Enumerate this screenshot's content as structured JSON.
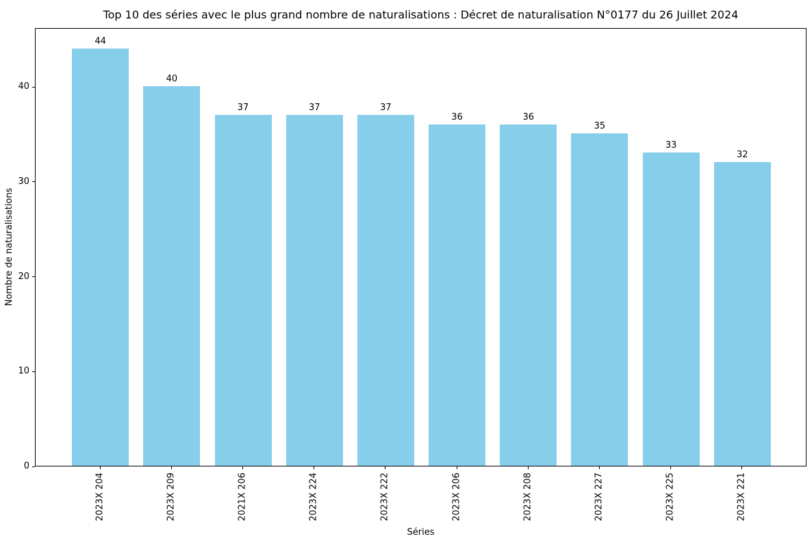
{
  "figure": {
    "background_color": "#ffffff",
    "text_color": "#000000"
  },
  "chart_data": {
    "type": "bar",
    "title": "Top 10 des séries avec le plus grand nombre de naturalisations : Décret de naturalisation N°0177 du 26 Juillet 2024",
    "xlabel": "Séries",
    "ylabel": "Nombre de naturalisations",
    "categories": [
      "2023X 204",
      "2023X 209",
      "2021X 206",
      "2023X 224",
      "2023X 222",
      "2023X 206",
      "2023X 208",
      "2023X 227",
      "2023X 225",
      "2023X 221"
    ],
    "values": [
      44,
      40,
      37,
      37,
      37,
      36,
      36,
      35,
      33,
      32
    ],
    "bar_value_labels": [
      "44",
      "40",
      "37",
      "37",
      "37",
      "36",
      "36",
      "35",
      "33",
      "32"
    ],
    "yticks": [
      0,
      10,
      20,
      30,
      40
    ],
    "ylim": [
      0,
      46.2
    ],
    "bar_color": "#87CEEB",
    "grid": false,
    "legend": null,
    "x_tick_rotation_deg": 90
  }
}
